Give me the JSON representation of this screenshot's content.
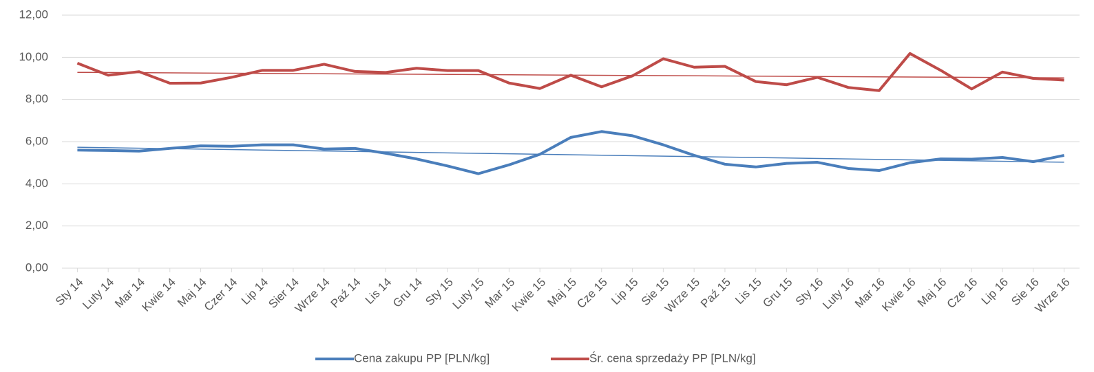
{
  "chart_data": {
    "type": "line",
    "categories": [
      "Sty 14",
      "Luty 14",
      "Mar 14",
      "Kwie 14",
      "Maj 14",
      "Czer 14",
      "Lip 14",
      "Sier 14",
      "Wrze 14",
      "Paź 14",
      "Lis 14",
      "Gru 14",
      "Sty 15",
      "Luty 15",
      "Mar 15",
      "Kwie 15",
      "Maj 15",
      "Cze 15",
      "Lip 15",
      "Sie 15",
      "Wrze 15",
      "Paź 15",
      "Lis 15",
      "Gru 15",
      "Sty 16",
      "Luty 16",
      "Mar 16",
      "Kwie 16",
      "Maj 16",
      "Cze 16",
      "Lip 16",
      "Sie 16",
      "Wrze 16"
    ],
    "series": [
      {
        "name": "Cena zakupu PP [PLN/kg]",
        "color": "#4a7ebb",
        "values": [
          5.6,
          5.58,
          5.55,
          5.68,
          5.8,
          5.78,
          5.85,
          5.85,
          5.65,
          5.68,
          5.45,
          5.18,
          4.85,
          4.48,
          4.9,
          5.4,
          6.2,
          6.48,
          6.28,
          5.85,
          5.35,
          4.93,
          4.8,
          4.97,
          5.02,
          4.73,
          4.63,
          5.0,
          5.18,
          5.17,
          5.25,
          5.05,
          5.35
        ]
      },
      {
        "name": "Śr. cena sprzedaży PP [PLN/kg]",
        "color": "#be4b48",
        "values": [
          9.72,
          9.15,
          9.32,
          8.77,
          8.78,
          9.05,
          9.38,
          9.38,
          9.67,
          9.33,
          9.28,
          9.48,
          9.37,
          9.37,
          8.78,
          8.52,
          9.15,
          8.6,
          9.12,
          9.93,
          9.53,
          9.57,
          8.85,
          8.7,
          9.05,
          8.57,
          8.42,
          10.18,
          9.38,
          8.5,
          9.3,
          9.0,
          8.92
        ]
      }
    ],
    "trendline": true,
    "ylim": [
      0,
      12
    ],
    "yticks": [
      {
        "value": 0,
        "label": "0,00"
      },
      {
        "value": 2,
        "label": "2,00"
      },
      {
        "value": 4,
        "label": "4,00"
      },
      {
        "value": 6,
        "label": "6,00"
      },
      {
        "value": 8,
        "label": "8,00"
      },
      {
        "value": 10,
        "label": "10,00"
      },
      {
        "value": 12,
        "label": "12,00"
      }
    ],
    "grid": true,
    "legend": "bottom"
  }
}
